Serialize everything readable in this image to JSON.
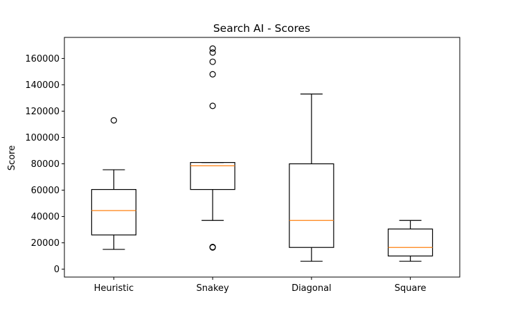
{
  "chart_data": {
    "type": "box",
    "title": "Search AI - Scores",
    "xlabel": "",
    "ylabel": "Score",
    "ylim": [
      -6000,
      176000
    ],
    "yticks": [
      0,
      20000,
      40000,
      60000,
      80000,
      100000,
      120000,
      140000,
      160000
    ],
    "ytick_labels": [
      "0",
      "20000",
      "40000",
      "60000",
      "80000",
      "100000",
      "120000",
      "140000",
      "160000"
    ],
    "grid": false,
    "categories": [
      "Heuristic",
      "Snakey",
      "Diagonal",
      "Square"
    ],
    "boxes": [
      {
        "name": "Heuristic",
        "whisker_low": 15000,
        "q1": 26000,
        "median": 44500,
        "q3": 60500,
        "whisker_high": 75500,
        "outliers": [
          113000
        ]
      },
      {
        "name": "Snakey",
        "whisker_low": 37000,
        "q1": 60500,
        "median": 78500,
        "q3": 81000,
        "whisker_high": 81000,
        "outliers": [
          16500,
          16800,
          124000,
          148000,
          157500,
          164500,
          167500
        ]
      },
      {
        "name": "Diagonal",
        "whisker_low": 6000,
        "q1": 16500,
        "median": 37000,
        "q3": 80000,
        "whisker_high": 133000,
        "outliers": []
      },
      {
        "name": "Square",
        "whisker_low": 6000,
        "q1": 10000,
        "median": 16500,
        "q3": 30500,
        "whisker_high": 37000,
        "outliers": []
      }
    ],
    "colors": {
      "box": "#000000",
      "median": "#ff7f0e",
      "outlier": "#000000"
    }
  }
}
